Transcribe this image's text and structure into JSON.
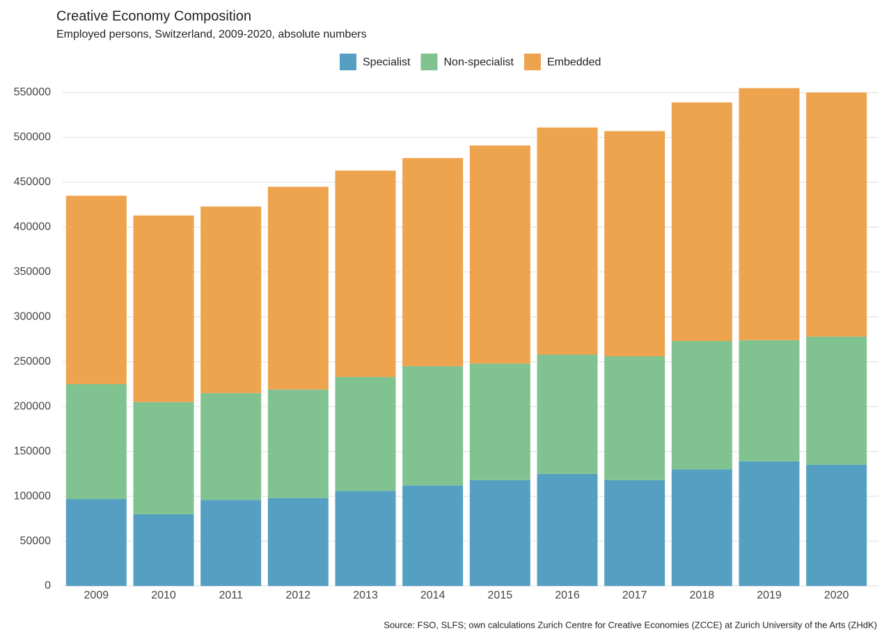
{
  "chart_data": {
    "type": "stacked-bar",
    "title": "Creative Economy Composition",
    "subtitle": "Employed persons, Switzerland, 2009-2020, absolute numbers",
    "source": "Source: FSO, SLFS; own calculations Zurich Centre for Creative Economies (ZCCE) at Zurich University of the Arts (ZHdK)",
    "categories": [
      "2009",
      "2010",
      "2011",
      "2012",
      "2013",
      "2014",
      "2015",
      "2016",
      "2017",
      "2018",
      "2019",
      "2020"
    ],
    "series": [
      {
        "name": "Specialist",
        "color": "#55a0c2",
        "values": [
          97000,
          80000,
          96000,
          98000,
          106000,
          112000,
          118000,
          125000,
          118000,
          130000,
          139000,
          135000
        ]
      },
      {
        "name": "Non-specialist",
        "color": "#80c391",
        "values": [
          128000,
          125000,
          119000,
          121000,
          127000,
          133000,
          130000,
          133000,
          138000,
          143000,
          135000,
          143000
        ]
      },
      {
        "name": "Embedded",
        "color": "#eea34e",
        "values": [
          210000,
          208000,
          208000,
          226000,
          230000,
          232000,
          243000,
          253000,
          251000,
          266000,
          281000,
          272000
        ]
      }
    ],
    "ylim": [
      0,
      550000
    ],
    "yticks": [
      0,
      50000,
      100000,
      150000,
      200000,
      250000,
      300000,
      350000,
      400000,
      450000,
      500000,
      550000
    ],
    "grid": true,
    "legend": "top"
  }
}
